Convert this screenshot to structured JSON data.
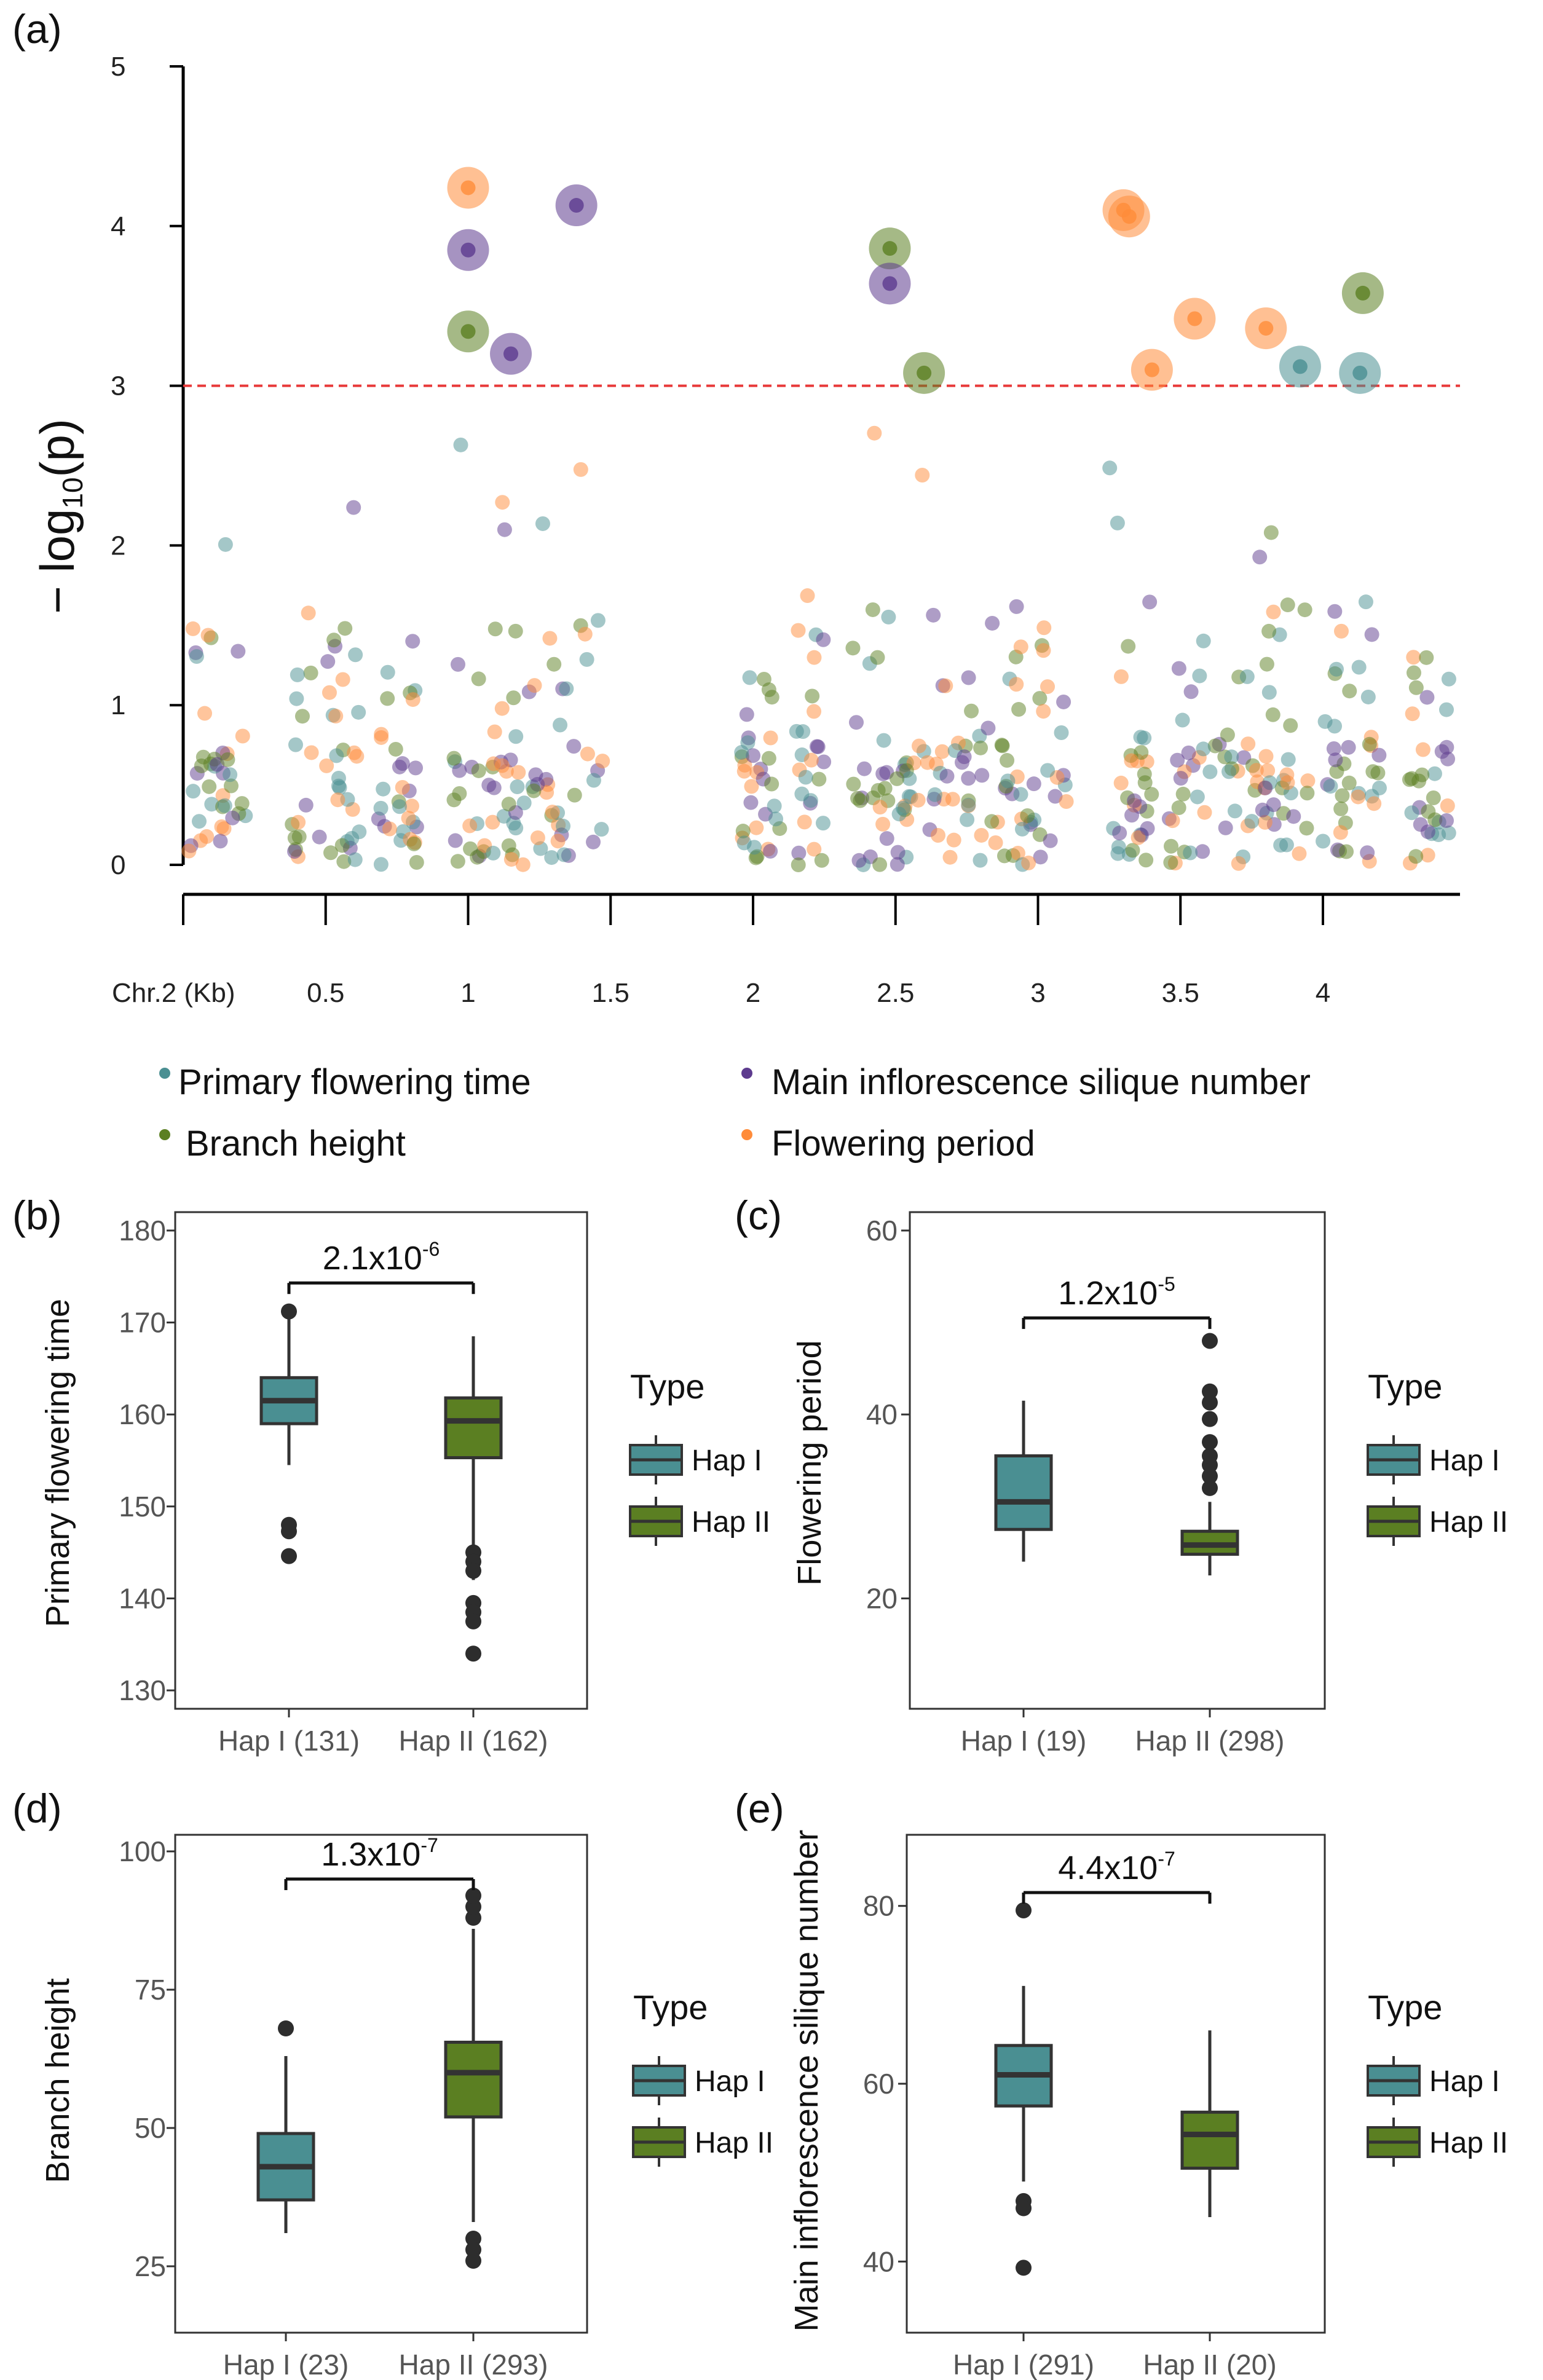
{
  "chart_data": [
    {
      "panel": "(a)",
      "type": "scatter",
      "title": "",
      "xlabel": "Chr.2 (Kb)",
      "ylabel": "−log10(p)",
      "ylabel_parts": [
        "− log",
        "10",
        "(p)"
      ],
      "xlim": [
        0,
        4.5
      ],
      "ylim": [
        0,
        5
      ],
      "yticks": [
        "0",
        "1",
        "2",
        "3",
        "4",
        "5"
      ],
      "xticks": [
        "0.5",
        "1",
        "1.5",
        "2",
        "2.5",
        "3",
        "3.5",
        "4"
      ],
      "threshold": 3,
      "colors": {
        "primary": "#4a8f92",
        "branch": "#5b7f22",
        "silique": "#5d3b8e",
        "flowering": "#ff8c3a",
        "threshold": "#e83a3a"
      },
      "legend": [
        {
          "key": "primary",
          "label": "Primary flowering time"
        },
        {
          "key": "silique",
          "label": "Main inflorescence silique number"
        },
        {
          "key": "branch",
          "label": "Branch height"
        },
        {
          "key": "flowering",
          "label": "Flowering period"
        }
      ],
      "significant": [
        {
          "series": "flowering",
          "x": 1.0,
          "y": 4.24
        },
        {
          "series": "silique",
          "x": 1.0,
          "y": 3.85
        },
        {
          "series": "branch",
          "x": 1.0,
          "y": 3.34
        },
        {
          "series": "silique",
          "x": 1.15,
          "y": 3.2
        },
        {
          "series": "silique",
          "x": 1.38,
          "y": 4.13
        },
        {
          "series": "branch",
          "x": 2.48,
          "y": 3.86
        },
        {
          "series": "silique",
          "x": 2.48,
          "y": 3.64
        },
        {
          "series": "branch",
          "x": 2.6,
          "y": 3.08
        },
        {
          "series": "flowering",
          "x": 3.3,
          "y": 4.1
        },
        {
          "series": "flowering",
          "x": 3.32,
          "y": 4.06
        },
        {
          "series": "flowering",
          "x": 3.4,
          "y": 3.1
        },
        {
          "series": "flowering",
          "x": 3.55,
          "y": 3.42
        },
        {
          "series": "flowering",
          "x": 3.8,
          "y": 3.36
        },
        {
          "series": "primary",
          "x": 3.92,
          "y": 3.12
        },
        {
          "series": "primary",
          "x": 4.13,
          "y": 3.08
        },
        {
          "series": "branch",
          "x": 4.14,
          "y": 3.58
        }
      ]
    },
    {
      "panel": "(b)",
      "type": "box",
      "ylabel": "Primary flowering time",
      "ylim": [
        128,
        182
      ],
      "yticks": [
        130,
        140,
        150,
        160,
        170,
        180
      ],
      "categories": [
        "Hap I (131)",
        "Hap II (162)"
      ],
      "boxes": [
        {
          "group": "Hap I",
          "min": 154.5,
          "q1": 159,
          "median": 161.5,
          "q3": 164,
          "max": 171,
          "outliers": [
            171.2,
            148,
            147.3,
            144.6
          ],
          "color": "#4a8f92"
        },
        {
          "group": "Hap II",
          "min": 142,
          "q1": 155.3,
          "median": 159.3,
          "q3": 161.8,
          "max": 168.5,
          "outliers": [
            145,
            144,
            143,
            139.5,
            138.5,
            137.5,
            134
          ]
        }
      ],
      "pvalue": {
        "base": "2.1x10",
        "exp": "-6"
      },
      "legend_title": "Type",
      "legend": [
        "Hap I",
        "Hap II"
      ]
    },
    {
      "panel": "(c)",
      "type": "box",
      "ylabel": "Flowering period",
      "ylim": [
        8,
        62
      ],
      "yticks": [
        20,
        40,
        60
      ],
      "categories": [
        "Hap I (19)",
        "Hap II (298)"
      ],
      "boxes": [
        {
          "group": "Hap I",
          "min": 24,
          "q1": 27.5,
          "median": 30.5,
          "q3": 35.5,
          "max": 41.5,
          "outliers": []
        },
        {
          "group": "Hap II",
          "min": 22.5,
          "q1": 24.8,
          "median": 25.8,
          "q3": 27.3,
          "max": 30.5,
          "outliers": [
            32,
            33.3,
            34.5,
            35.5,
            37,
            39.5,
            41.3,
            42.5,
            48
          ]
        }
      ],
      "pvalue": {
        "base": "1.2x10",
        "exp": "-5"
      },
      "legend_title": "Type",
      "legend": [
        "Hap I",
        "Hap II"
      ]
    },
    {
      "panel": "(d)",
      "type": "box",
      "ylabel": "Branch height",
      "ylim": [
        13,
        103
      ],
      "yticks": [
        25,
        50,
        75,
        100
      ],
      "categories": [
        "Hap I (23)",
        "Hap II (293)"
      ],
      "boxes": [
        {
          "group": "Hap I",
          "min": 31,
          "q1": 37,
          "median": 43,
          "q3": 49,
          "max": 63,
          "outliers": [
            68
          ]
        },
        {
          "group": "Hap II",
          "min": 33,
          "q1": 52,
          "median": 60,
          "q3": 65.5,
          "max": 86,
          "outliers": [
            88,
            90,
            92,
            30,
            28,
            26
          ]
        }
      ],
      "pvalue": {
        "base": "1.3x10",
        "exp": "-7"
      },
      "legend_title": "Type",
      "legend": [
        "Hap I",
        "Hap II"
      ]
    },
    {
      "panel": "(e)",
      "type": "box",
      "ylabel": "Main inflorescence silique number",
      "ylim": [
        32,
        88
      ],
      "yticks": [
        40,
        60,
        80
      ],
      "categories": [
        "Hap I (291)",
        "Hap II (20)"
      ],
      "boxes": [
        {
          "group": "Hap I",
          "min": 49,
          "q1": 57.5,
          "median": 61,
          "q3": 64.3,
          "max": 71,
          "outliers": [
            79.5,
            46.8,
            46,
            39.3
          ]
        },
        {
          "group": "Hap II",
          "min": 45,
          "q1": 50.5,
          "median": 54.3,
          "q3": 56.8,
          "max": 66,
          "outliers": []
        }
      ],
      "pvalue": {
        "base": "4.4x10",
        "exp": "-7"
      },
      "legend_title": "Type",
      "legend": [
        "Hap I",
        "Hap II"
      ]
    }
  ],
  "box_colors": {
    "hap1": "#4a8f92",
    "hap2": "#5b7f22"
  }
}
